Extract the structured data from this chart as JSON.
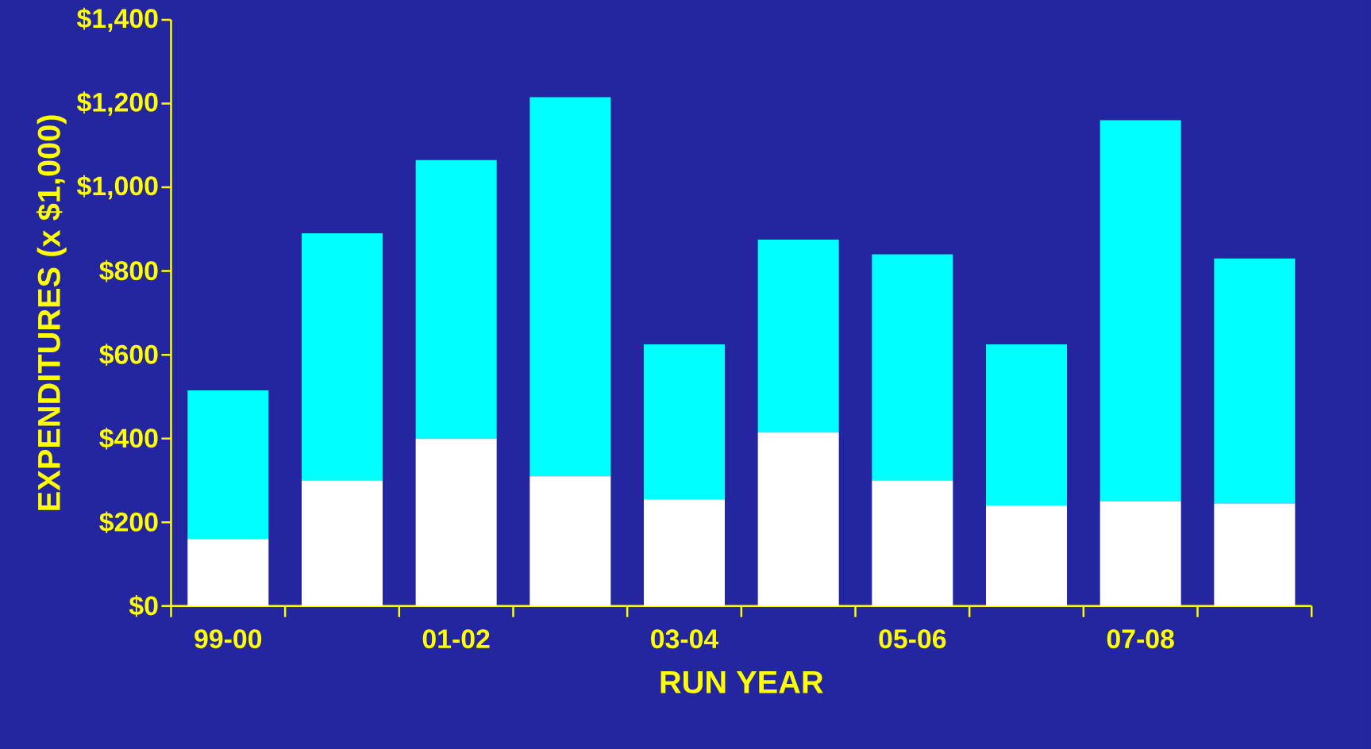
{
  "chart_data": {
    "type": "bar",
    "stacked": true,
    "xlabel": "RUN YEAR",
    "ylabel": "EXPENDITURES (x $1,000)",
    "categories": [
      "99-00",
      null,
      "01-02",
      null,
      "03-04",
      null,
      "05-06",
      null,
      "07-08",
      null
    ],
    "series": [
      {
        "color": "#ffffff",
        "values": [
          160,
          300,
          400,
          310,
          255,
          415,
          300,
          240,
          250,
          245
        ]
      },
      {
        "color": "#00ffff",
        "values": [
          355,
          590,
          665,
          905,
          370,
          460,
          540,
          385,
          910,
          585
        ]
      }
    ],
    "ylim": [
      0,
      1400
    ],
    "yticks": [
      {
        "value": 0,
        "label": "$0"
      },
      {
        "value": 200,
        "label": "$200"
      },
      {
        "value": 400,
        "label": "$400"
      },
      {
        "value": 600,
        "label": "$600"
      },
      {
        "value": 800,
        "label": "$800"
      },
      {
        "value": 1000,
        "label": "$1,000"
      },
      {
        "value": 1200,
        "label": "$1,200"
      },
      {
        "value": 1400,
        "label": "$1,400"
      }
    ]
  }
}
